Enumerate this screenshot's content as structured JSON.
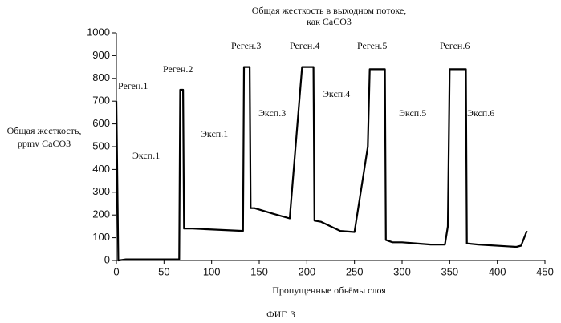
{
  "chart_data": {
    "type": "line",
    "title": [
      "Общая жесткость в выходном потоке,",
      "как CaCO3"
    ],
    "y_label": [
      "Общая жесткость,",
      "ppmv CaCO3"
    ],
    "x_label": "Пропущенные объёмы слоя",
    "caption": "ФИГ. 3",
    "color": "#000000",
    "x": [
      0,
      2,
      10,
      66,
      67,
      70,
      71,
      80,
      133,
      134,
      140,
      141,
      145,
      165,
      182,
      195,
      207,
      208,
      215,
      235,
      250,
      264,
      266,
      282,
      283,
      290,
      300,
      330,
      345,
      348,
      350,
      367,
      368,
      380,
      420,
      425,
      431
    ],
    "values": [
      700,
      0,
      5,
      5,
      750,
      750,
      140,
      140,
      130,
      850,
      850,
      230,
      230,
      205,
      185,
      850,
      850,
      175,
      170,
      130,
      125,
      500,
      840,
      840,
      90,
      80,
      80,
      70,
      70,
      150,
      840,
      840,
      75,
      70,
      60,
      65,
      130
    ],
    "xlim": [
      0,
      450
    ],
    "xticks": [
      0,
      50,
      100,
      150,
      200,
      250,
      300,
      350,
      400,
      450
    ],
    "ylim": [
      0,
      1000
    ],
    "yticks": [
      0,
      100,
      200,
      300,
      400,
      500,
      600,
      700,
      800,
      900,
      1000
    ],
    "grid": false,
    "annotations": [
      "Реген.1",
      "Эксп.1",
      "Реген.2",
      "Эксп.1",
      "Реген.3",
      "Эксп.3",
      "Реген.4",
      "Эксп.4",
      "Реген.5",
      "Эксп.5",
      "Реген.6",
      "Эксп.6"
    ]
  }
}
